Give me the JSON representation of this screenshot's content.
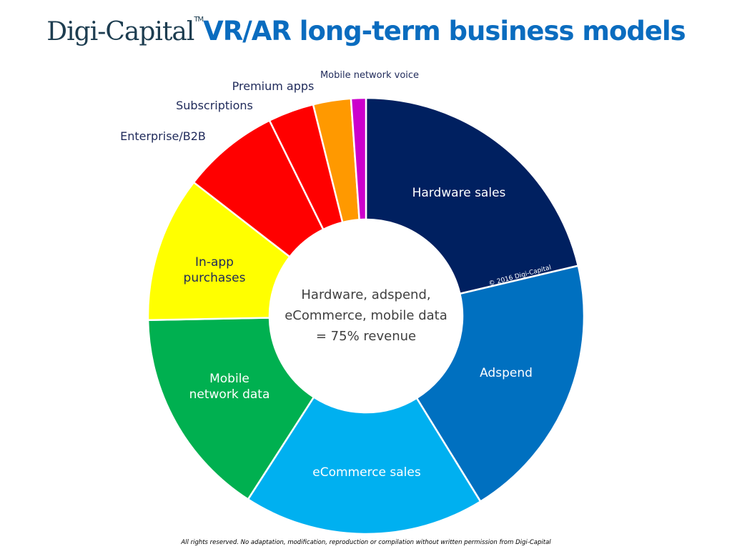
{
  "title": {
    "brand": "Digi-Capital",
    "tm": "TM",
    "main": "VR/AR long-term business models"
  },
  "footer": "All rights reserved. No adaptation, modification, reproduction or compilation without written permission from Digi-Capital",
  "chart_data": {
    "type": "pie",
    "variant": "donut",
    "title": "VR/AR long-term business models",
    "unit": "percent of revenue (estimated)",
    "slices": [
      {
        "label": "Hardware sales",
        "value": 21.3,
        "color": "#002060",
        "label_color": "#ffffff",
        "label_lines": [
          "Hardware sales"
        ]
      },
      {
        "label": "Adspend",
        "value": 19.9,
        "color": "#0070c0",
        "label_color": "#ffffff",
        "label_lines": [
          "Adspend"
        ]
      },
      {
        "label": "eCommerce sales",
        "value": 17.9,
        "color": "#00b0f0",
        "label_color": "#ffffff",
        "label_lines": [
          "eCommerce sales"
        ]
      },
      {
        "label": "Mobile network data",
        "value": 15.6,
        "color": "#00b050",
        "label_color": "#ffffff",
        "label_lines": [
          "Mobile",
          "network data"
        ]
      },
      {
        "label": "In-app purchases",
        "value": 10.8,
        "color": "#ffff00",
        "label_color": "#1f2a5a",
        "label_lines": [
          "In-app",
          "purchases"
        ]
      },
      {
        "label": "Enterprise/B2B",
        "value": 7.2,
        "color": "#ff0000",
        "label_color": "#1f2a5a",
        "label_lines": [
          "Enterprise/B2B"
        ]
      },
      {
        "label": "Subscriptions",
        "value": 3.4,
        "color": "#ff0000",
        "label_color": "#1f2a5a",
        "label_lines": [
          "Subscriptions"
        ]
      },
      {
        "label": "Premium apps",
        "value": 2.8,
        "color": "#ff9900",
        "label_color": "#1f2a5a",
        "label_lines": [
          "Premium apps"
        ]
      },
      {
        "label": "Mobile network voice",
        "value": 1.1,
        "color": "#cc00cc",
        "label_color": "#1f2a5a",
        "label_lines": [
          "Mobile network voice"
        ]
      }
    ],
    "center_text": [
      "Hardware, adspend,",
      "eCommerce, mobile data",
      "= 75% revenue"
    ],
    "annotation": "© 2016 Digi-Capital"
  }
}
